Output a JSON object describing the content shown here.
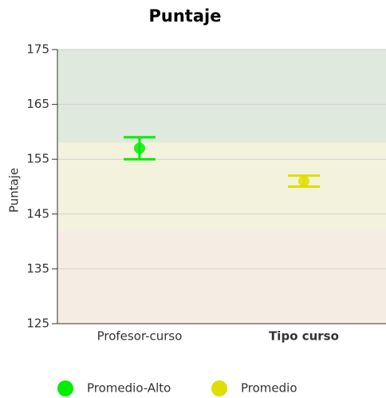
{
  "chart_data": {
    "type": "errorbar",
    "title": "Puntaje",
    "y_label": "Puntaje",
    "categories": [
      "Profesor-curso",
      "Tipo curso"
    ],
    "series": [
      {
        "name": "Promedio-Alto",
        "color": "#00ee00",
        "values": [
          157,
          null
        ],
        "errors": [
          2,
          null
        ]
      },
      {
        "name": "Promedio",
        "color": "#dede00",
        "values": [
          null,
          151
        ],
        "errors": [
          null,
          1
        ]
      }
    ],
    "bands": [
      {
        "from": 158,
        "to": 175,
        "color": "#dfe9dd"
      },
      {
        "from": 142,
        "to": 158,
        "color": "#f3f2dc"
      },
      {
        "from": 125,
        "to": 142,
        "color": "#f5ede4"
      }
    ],
    "ylim": [
      125,
      175
    ],
    "yticks": [
      125,
      135,
      145,
      155,
      165,
      175
    ],
    "grid": true,
    "legend": "bottom"
  }
}
